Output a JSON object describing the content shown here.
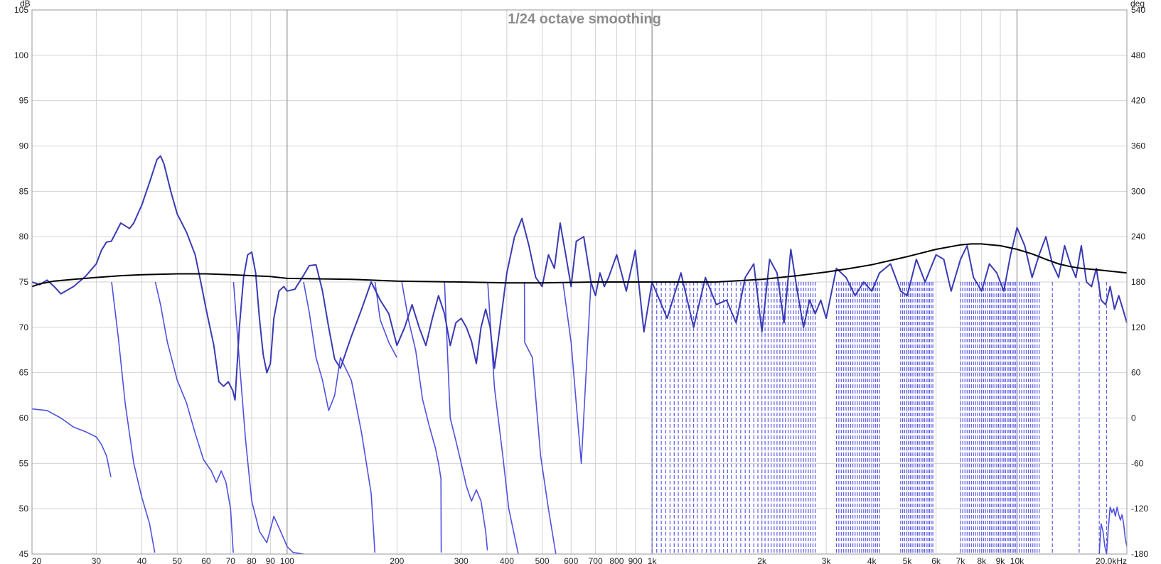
{
  "chart_data": {
    "type": "line",
    "title": "1/24 octave smoothing",
    "xlabel": "",
    "ylabel": "",
    "x_scale": "log",
    "xlim": [
      20,
      20000
    ],
    "ylim": [
      45,
      105
    ],
    "y2lim": [
      -180,
      540
    ],
    "y_unit": "dB",
    "y2_unit": "deg",
    "grid": true,
    "x_ticks": [
      20,
      30,
      40,
      50,
      60,
      70,
      80,
      90,
      100,
      200,
      300,
      400,
      500,
      600,
      700,
      800,
      900,
      1000,
      2000,
      3000,
      4000,
      5000,
      6000,
      7000,
      8000,
      9000,
      10000,
      20000
    ],
    "x_tick_labels": [
      "20",
      "30",
      "40",
      "50",
      "60",
      "70",
      "80",
      "90",
      "100",
      "200",
      "300",
      "400",
      "500",
      "600",
      "700",
      "800",
      "900",
      "1k",
      "2k",
      "3k",
      "4k",
      "5k",
      "6k",
      "7k",
      "8k",
      "9k",
      "10k",
      "20,0kHz"
    ],
    "y_ticks": [
      45,
      50,
      55,
      60,
      65,
      70,
      75,
      80,
      85,
      90,
      95,
      100,
      105
    ],
    "y_tick_labels": [
      "45",
      "50",
      "55",
      "60",
      "65",
      "70",
      "75",
      "80",
      "85",
      "90",
      "95",
      "100",
      "105"
    ],
    "y2_ticks": [
      -180,
      -120,
      -60,
      0,
      60,
      120,
      180,
      240,
      300,
      360,
      420,
      480,
      540
    ],
    "y2_tick_labels": [
      "-180",
      "-120",
      "-60",
      "0",
      "60",
      "120",
      "180",
      "240",
      "300",
      "360",
      "420",
      "480",
      "540"
    ],
    "series": [
      {
        "axis": "left",
        "color": "#3a3ab4",
        "x": [
          20,
          21,
          22,
          23,
          24,
          26,
          28,
          30,
          31,
          32,
          33,
          34,
          35,
          36,
          37,
          38,
          40,
          42,
          44,
          45,
          46,
          48,
          50,
          53,
          56,
          58,
          60,
          63,
          65,
          67,
          69,
          71,
          72,
          74,
          76,
          78,
          80,
          82,
          84,
          86,
          88,
          90,
          92,
          95,
          98,
          100,
          105,
          110,
          115,
          120,
          125,
          130,
          135,
          140,
          150,
          160,
          170,
          180,
          190,
          200,
          210,
          220,
          230,
          240,
          250,
          260,
          270,
          280,
          290,
          300,
          310,
          320,
          330,
          340,
          350,
          360,
          370,
          380,
          400,
          420,
          440,
          460,
          480,
          500,
          520,
          540,
          560,
          580,
          600,
          620,
          650,
          680,
          700,
          720,
          740,
          760,
          800,
          850,
          900,
          950,
          1000,
          1100,
          1200,
          1300,
          1400,
          1500,
          1600,
          1700,
          1800,
          1900,
          2000,
          2100,
          2200,
          2300,
          2400,
          2500,
          2600,
          2700,
          2800,
          2900,
          3000,
          3200,
          3400,
          3600,
          3800,
          4000,
          4200,
          4500,
          4800,
          5000,
          5300,
          5600,
          6000,
          6300,
          6600,
          7000,
          7300,
          7600,
          8000,
          8400,
          8800,
          9200,
          9600,
          10000,
          10500,
          11000,
          11500,
          12000,
          12500,
          13000,
          13500,
          14000,
          14500,
          15000,
          15500,
          16000,
          16500,
          17000,
          17500,
          18000,
          18500,
          19000,
          19500,
          20000
        ],
        "values": [
          75.0,
          74.7,
          75.2,
          74.5,
          73.7,
          74.5,
          75.6,
          77.0,
          78.5,
          79.4,
          79.5,
          80.5,
          81.5,
          81.2,
          80.9,
          81.5,
          83.5,
          86.0,
          88.5,
          88.9,
          88.0,
          85.0,
          82.5,
          80.5,
          78.0,
          75.0,
          72.0,
          68.0,
          64.0,
          63.5,
          64.0,
          63.0,
          62.0,
          70.0,
          75.5,
          78.0,
          78.3,
          76.0,
          71.0,
          67.0,
          65.0,
          66.0,
          71.0,
          74.0,
          74.5,
          74.0,
          74.2,
          75.5,
          76.8,
          76.9,
          74.0,
          70.0,
          66.5,
          65.5,
          69.0,
          72.0,
          75.0,
          73.0,
          71.5,
          68.0,
          70.0,
          72.5,
          70.0,
          68.0,
          71.0,
          73.5,
          71.5,
          68.0,
          70.5,
          71.0,
          70.0,
          68.5,
          66.0,
          70.0,
          72.0,
          70.0,
          65.5,
          69.0,
          76.0,
          80.0,
          82.0,
          79.0,
          75.5,
          74.5,
          78.0,
          76.5,
          81.5,
          78.0,
          74.5,
          79.5,
          80.0,
          75.0,
          73.5,
          76.0,
          74.5,
          75.5,
          78.0,
          74.0,
          78.5,
          69.5,
          75.0,
          71.0,
          76.0,
          70.0,
          75.5,
          72.5,
          73.0,
          70.5,
          75.5,
          77.0,
          69.5,
          77.5,
          76.0,
          70.5,
          78.6,
          74.0,
          70.0,
          73.0,
          71.5,
          73.0,
          71.0,
          76.5,
          75.5,
          73.5,
          75.0,
          74.0,
          76.0,
          77.0,
          74.0,
          73.5,
          77.5,
          75.0,
          78.0,
          77.5,
          74.0,
          77.5,
          79.0,
          75.5,
          74.0,
          77.0,
          76.0,
          74.0,
          78.0,
          81.0,
          79.0,
          75.5,
          78.0,
          80.0,
          77.0,
          75.5,
          79.0,
          77.0,
          75.5,
          79.0,
          75.0,
          74.5,
          76.5,
          73.0,
          72.5,
          74.5,
          72.0,
          73.5,
          72.0,
          70.5
        ]
      },
      {
        "axis": "left",
        "color": "#000000",
        "x": [
          20,
          21,
          23,
          26,
          30,
          35,
          40,
          50,
          60,
          70,
          80,
          90,
          100,
          150,
          200,
          300,
          400,
          500,
          700,
          1000,
          1500,
          2000,
          2500,
          3000,
          3500,
          4000,
          5000,
          6000,
          7000,
          7500,
          8000,
          8500,
          9000,
          9500,
          10000,
          11000,
          12000,
          13000,
          14000,
          15000,
          16000,
          17000,
          18000,
          19000,
          20000
        ],
        "values": [
          74.5,
          74.8,
          75.1,
          75.3,
          75.5,
          75.7,
          75.8,
          75.9,
          75.9,
          75.8,
          75.7,
          75.6,
          75.4,
          75.3,
          75.1,
          75.0,
          74.9,
          74.9,
          75.0,
          75.0,
          75.0,
          75.3,
          75.7,
          76.1,
          76.5,
          76.9,
          77.8,
          78.6,
          79.1,
          79.2,
          79.2,
          79.1,
          79.0,
          78.8,
          78.6,
          78.1,
          77.5,
          77.0,
          76.7,
          76.5,
          76.4,
          76.3,
          76.2,
          76.1,
          76.0
        ]
      },
      {
        "axis": "right",
        "color": "#5050e0",
        "x": [
          20,
          22,
          24,
          26,
          28,
          30,
          31,
          32,
          32.9,
          33.05,
          34.5,
          36,
          38,
          40,
          42,
          43.4,
          43.55,
          45,
          47,
          50,
          53,
          56,
          59,
          62,
          64,
          66,
          68,
          70,
          71.2,
          71.35,
          74,
          77,
          80,
          84,
          88,
          92,
          96,
          100,
          104,
          108,
          110.8,
          110.95,
          115,
          120,
          125,
          130,
          135,
          140,
          150,
          160,
          170,
          174,
          174.2,
          180,
          190,
          200,
          206,
          206.3,
          215,
          225,
          235,
          245,
          255,
          260,
          264,
          264.4,
          270,
          280,
          290,
          300,
          310,
          320,
          330,
          340,
          350,
          354,
          354.6,
          370,
          390,
          405,
          430,
          447,
          447.8,
          470,
          495,
          520,
          545,
          570,
          600,
          640,
          680,
          720,
          760,
          800,
          850,
          900,
          950,
          1000
        ],
        "values": [
          12,
          10,
          0,
          -12,
          -18,
          -25,
          -35,
          -50,
          -78,
          180,
          105,
          20,
          -60,
          -105,
          -140,
          -178,
          180,
          150,
          100,
          50,
          20,
          -20,
          -55,
          -70,
          -85,
          -70,
          -85,
          -120,
          -178,
          180,
          75,
          -30,
          -110,
          -150,
          -165,
          -130,
          -150,
          -170,
          -178,
          -179,
          -180,
          180,
          140,
          80,
          50,
          10,
          30,
          80,
          50,
          -20,
          -100,
          -178,
          180,
          130,
          100,
          80,
          -179,
          180,
          130,
          90,
          25,
          -10,
          -40,
          -60,
          -80,
          -178,
          180,
          0,
          -30,
          -60,
          -90,
          -110,
          -95,
          -110,
          -150,
          -175,
          180,
          40,
          -50,
          -120,
          -180,
          180,
          100,
          80,
          -50,
          -120,
          -180,
          180,
          100,
          -60,
          180,
          -100,
          180,
          -100,
          180,
          -110,
          180,
          -120
        ]
      }
    ],
    "phase_wrap_x": [
      1000,
      1030,
      1060,
      1090,
      1120,
      1150,
      1180,
      1210,
      1240,
      1270,
      1300,
      1330,
      1370,
      1410,
      1450,
      1490,
      1530,
      1570,
      1610,
      1650,
      1700,
      1750,
      1800,
      1850,
      1900,
      1950,
      2000,
      2040,
      2080,
      2120,
      2160,
      2200,
      2240,
      2280,
      2320,
      2360,
      2400,
      2440,
      2480,
      2520,
      2560,
      2600,
      2640,
      2680,
      2720,
      2760,
      2800,
      3200,
      3250,
      3300,
      3350,
      3400,
      3450,
      3500,
      3550,
      3600,
      3650,
      3700,
      3750,
      3800,
      3850,
      3900,
      3950,
      4000,
      4050,
      4100,
      4150,
      4200,
      4800,
      4860,
      4920,
      4980,
      5040,
      5100,
      5160,
      5220,
      5280,
      5340,
      5400,
      5460,
      5520,
      5580,
      5640,
      5700,
      5760,
      5820,
      5880,
      7000,
      7100,
      7200,
      7300,
      7400,
      7500,
      7600,
      7700,
      7800,
      7900,
      8000,
      8100,
      8200,
      8300,
      8400,
      8500,
      8600,
      8700,
      8800,
      8900,
      9000,
      9100,
      9200,
      9300,
      9400,
      9500,
      9600,
      9700,
      9800,
      9900,
      10000,
      10150,
      10300,
      10450,
      10600,
      10750,
      10900,
      11050,
      11200,
      11350,
      11500,
      12500,
      14800,
      16800,
      17600
    ],
    "phase_tail": {
      "x": [
        16800,
        17000,
        17200,
        17400,
        17600,
        17800,
        18000,
        18200,
        18400,
        18600,
        18800,
        19000,
        19200,
        19400,
        19600,
        19800,
        20000
      ],
      "values": [
        -180,
        -140,
        -150,
        -170,
        -180,
        -145,
        -118,
        -125,
        -120,
        -130,
        -118,
        -128,
        -135,
        -128,
        -140,
        -160,
        -170
      ]
    }
  }
}
